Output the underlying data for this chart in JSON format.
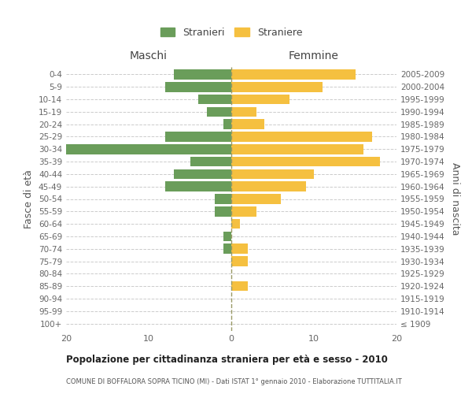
{
  "age_groups": [
    "100+",
    "95-99",
    "90-94",
    "85-89",
    "80-84",
    "75-79",
    "70-74",
    "65-69",
    "60-64",
    "55-59",
    "50-54",
    "45-49",
    "40-44",
    "35-39",
    "30-34",
    "25-29",
    "20-24",
    "15-19",
    "10-14",
    "5-9",
    "0-4"
  ],
  "birth_years": [
    "≤ 1909",
    "1910-1914",
    "1915-1919",
    "1920-1924",
    "1925-1929",
    "1930-1934",
    "1935-1939",
    "1940-1944",
    "1945-1949",
    "1950-1954",
    "1955-1959",
    "1960-1964",
    "1965-1969",
    "1970-1974",
    "1975-1979",
    "1980-1984",
    "1985-1989",
    "1990-1994",
    "1995-1999",
    "2000-2004",
    "2005-2009"
  ],
  "maschi": [
    0,
    0,
    0,
    0,
    0,
    0,
    1,
    1,
    0,
    2,
    2,
    8,
    7,
    5,
    20,
    8,
    1,
    3,
    4,
    8,
    7
  ],
  "femmine": [
    0,
    0,
    0,
    2,
    0,
    2,
    2,
    0,
    1,
    3,
    6,
    9,
    10,
    18,
    16,
    17,
    4,
    3,
    7,
    11,
    15
  ],
  "maschi_color": "#6a9d5a",
  "femmine_color": "#f5c040",
  "background_color": "#ffffff",
  "grid_color": "#cccccc",
  "title": "Popolazione per cittadinanza straniera per età e sesso - 2010",
  "subtitle": "COMUNE DI BOFFALORA SOPRA TICINO (MI) - Dati ISTAT 1° gennaio 2010 - Elaborazione TUTTITALIA.IT",
  "xlabel_left": "Maschi",
  "xlabel_right": "Femmine",
  "ylabel_left": "Fasce di età",
  "ylabel_right": "Anni di nascita",
  "legend_maschi": "Stranieri",
  "legend_femmine": "Straniere",
  "xlim": 20,
  "bar_height": 0.8
}
